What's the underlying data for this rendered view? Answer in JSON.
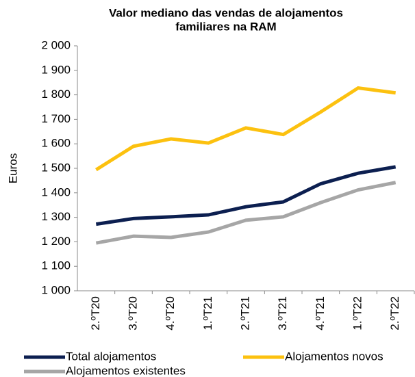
{
  "chart_data": {
    "type": "line",
    "title": [
      "Valor mediano das vendas de alojamentos",
      "familiares na RAM"
    ],
    "y_label": "Euros",
    "categories": [
      "2.ºT20",
      "3.ºT20",
      "4.ºT20",
      "1.ºT21",
      "2.ºT21",
      "3.ºT21",
      "4.ºT21",
      "1.ºT22",
      "2.ºT22"
    ],
    "series": [
      {
        "name": "Total alojamentos",
        "color": "#0c1f50",
        "values": [
          1272,
          1295,
          1302,
          1310,
          1343,
          1363,
          1437,
          1480,
          1506
        ]
      },
      {
        "name": "Alojamentos novos",
        "color": "#fcc10f",
        "values": [
          1494,
          1590,
          1620,
          1603,
          1665,
          1638,
          1730,
          1828,
          1808
        ]
      },
      {
        "name": "Alojamentos existentes",
        "color": "#a6a6a6",
        "values": [
          1195,
          1223,
          1218,
          1240,
          1288,
          1302,
          1360,
          1412,
          1442
        ]
      }
    ],
    "ylim": [
      1000,
      2000
    ],
    "yticks": [
      {
        "value": 1000,
        "label": "1 000"
      },
      {
        "value": 1100,
        "label": "1 100"
      },
      {
        "value": 1200,
        "label": "1 200"
      },
      {
        "value": 1300,
        "label": "1 300"
      },
      {
        "value": 1400,
        "label": "1 400"
      },
      {
        "value": 1500,
        "label": "1 500"
      },
      {
        "value": 1600,
        "label": "1 600"
      },
      {
        "value": 1700,
        "label": "1 700"
      },
      {
        "value": 1800,
        "label": "1 800"
      },
      {
        "value": 1900,
        "label": "1 900"
      },
      {
        "value": 2000,
        "label": "2 000"
      }
    ],
    "grid": false
  }
}
